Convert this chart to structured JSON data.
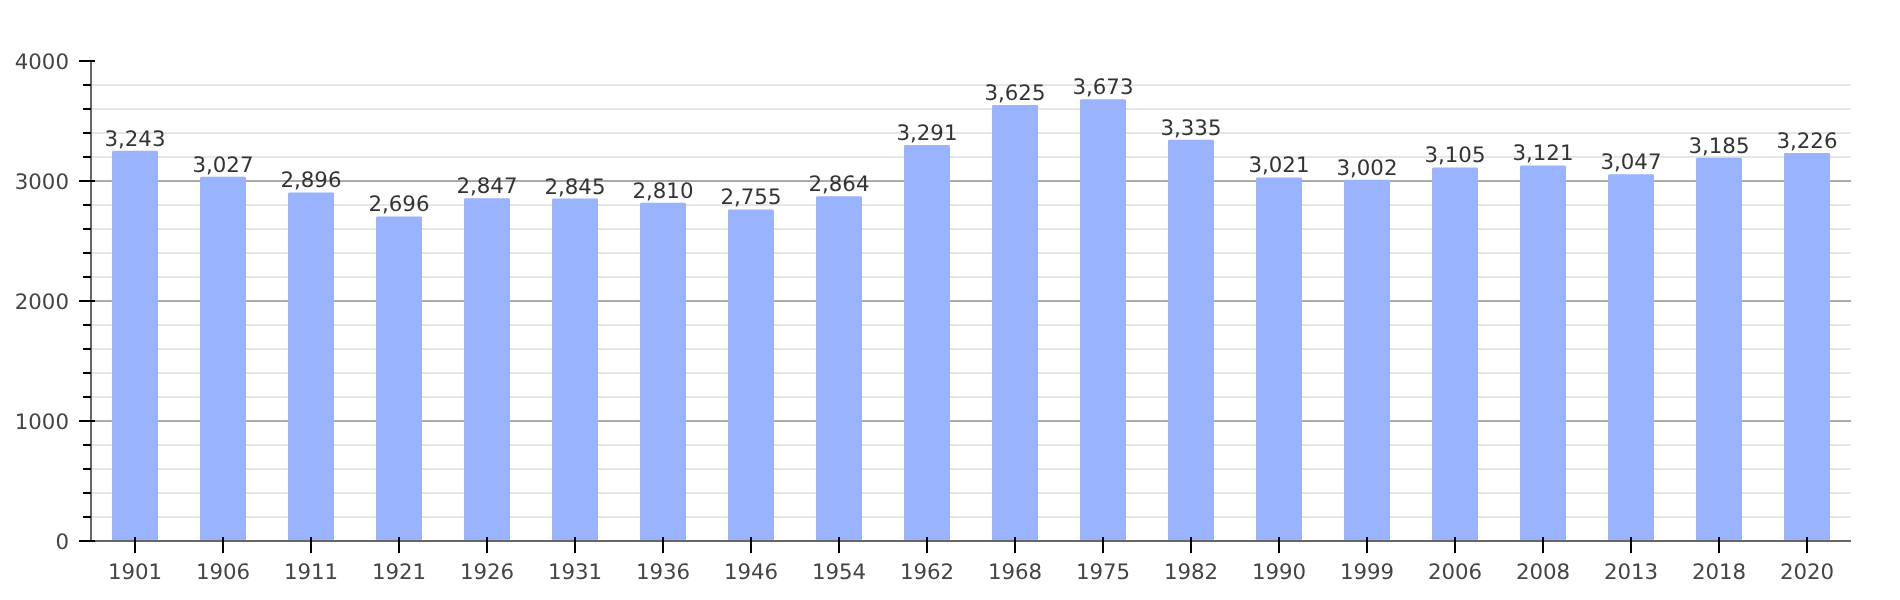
{
  "chart_data": {
    "type": "bar",
    "categories": [
      "1901",
      "1906",
      "1911",
      "1921",
      "1926",
      "1931",
      "1936",
      "1946",
      "1954",
      "1962",
      "1968",
      "1975",
      "1982",
      "1990",
      "1999",
      "2006",
      "2008",
      "2013",
      "2018",
      "2020"
    ],
    "values": [
      3243,
      3027,
      2896,
      2696,
      2847,
      2845,
      2810,
      2755,
      2864,
      3291,
      3625,
      3673,
      3335,
      3021,
      3002,
      3105,
      3121,
      3047,
      3185,
      3226
    ],
    "value_labels": [
      "3,243",
      "3,027",
      "2,896",
      "2,696",
      "2,847",
      "2,845",
      "2,810",
      "2,755",
      "2,864",
      "3,291",
      "3,625",
      "3,673",
      "3,335",
      "3,021",
      "3,002",
      "3,105",
      "3,121",
      "3,047",
      "3,185",
      "3,226"
    ],
    "color": "#99b3ff",
    "ylim": [
      0,
      4000
    ],
    "yticks": [
      0,
      1000,
      2000,
      3000,
      4000
    ],
    "grid": "y"
  }
}
